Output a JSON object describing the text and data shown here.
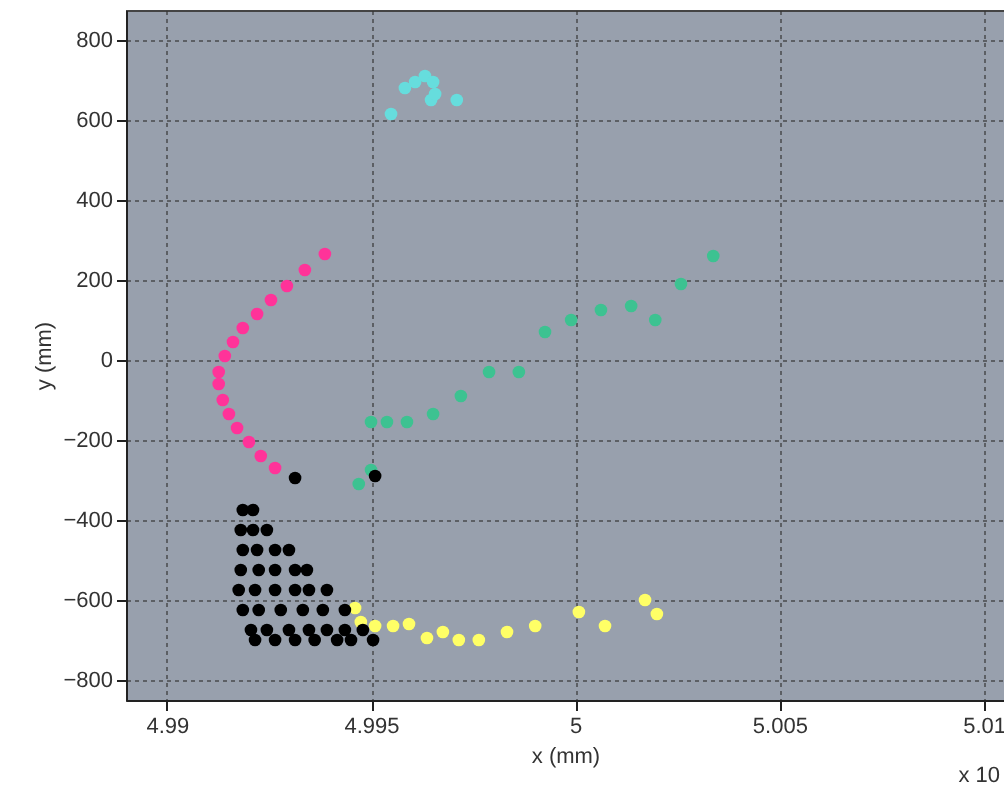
{
  "chart_data": {
    "type": "scatter",
    "xlabel": "x (mm)",
    "ylabel": "y (mm)",
    "annotations": [
      "x 10"
    ],
    "xlim": [
      4.989,
      5.0105
    ],
    "ylim": [
      -850,
      875
    ],
    "xticks": [
      4.99,
      4.995,
      5,
      5.005,
      5.01
    ],
    "yticks": [
      -800,
      -600,
      -400,
      -200,
      0,
      200,
      400,
      600,
      800
    ],
    "grid": true,
    "marker": "circle",
    "series": [
      {
        "color": "#ff3399",
        "x": [
          4.99387,
          4.99338,
          4.99294,
          4.99255,
          4.99221,
          4.99186,
          4.99162,
          4.99142,
          4.99127,
          4.99127,
          4.99137,
          4.99152,
          4.99172,
          4.99201,
          4.9923,
          4.99265
        ],
        "values": [
          265,
          225,
          185,
          150,
          115,
          80,
          45,
          10,
          -30,
          -60,
          -100,
          -135,
          -170,
          -205,
          -240,
          -270
        ]
      },
      {
        "color": "#3dc291",
        "x": [
          4.9947,
          4.995,
          4.995,
          4.99539,
          4.99588,
          4.99652,
          4.9972,
          4.99789,
          4.99862,
          4.99926,
          4.9999,
          5.00063,
          5.00137,
          5.00196,
          5.00259,
          5.00338
        ],
        "values": [
          -310,
          -275,
          -155,
          -155,
          -155,
          -135,
          -90,
          -30,
          -30,
          70,
          100,
          125,
          135,
          100,
          190,
          260
        ]
      },
      {
        "color": "#ffff66",
        "x": [
          4.99461,
          4.99475,
          4.9951,
          4.99554,
          4.99593,
          4.99637,
          4.99676,
          4.99715,
          4.99764,
          4.99833,
          4.99902,
          5.00009,
          5.00073,
          5.00171,
          5.002
        ],
        "values": [
          -620,
          -655,
          -665,
          -665,
          -660,
          -695,
          -680,
          -700,
          -700,
          -680,
          -665,
          -630,
          -665,
          -600,
          -635
        ]
      },
      {
        "color": "#66dddd",
        "x": [
          4.99549,
          4.99583,
          4.99608,
          4.99632,
          4.99647,
          4.99657,
          4.99652,
          4.9971
        ],
        "values": [
          615,
          680,
          695,
          710,
          650,
          665,
          695,
          650
        ]
      },
      {
        "color": "#000000",
        "x": [
          4.99314,
          4.9951,
          4.99186,
          4.99211,
          4.99181,
          4.99211,
          4.99245,
          4.99186,
          4.99221,
          4.99265,
          4.99299,
          4.99181,
          4.99225,
          4.99265,
          4.99314,
          4.99343,
          4.99176,
          4.99216,
          4.99265,
          4.99314,
          4.99348,
          4.99392,
          4.99186,
          4.99225,
          4.99279,
          4.99333,
          4.99382,
          4.99436,
          4.99206,
          4.99245,
          4.99299,
          4.99348,
          4.99392,
          4.99436,
          4.9948,
          4.99216,
          4.99265,
          4.99314,
          4.99362,
          4.99417,
          4.99451,
          4.99505
        ],
        "values": [
          -295,
          -290,
          -375,
          -375,
          -425,
          -425,
          -425,
          -475,
          -475,
          -475,
          -475,
          -525,
          -525,
          -525,
          -525,
          -525,
          -575,
          -575,
          -575,
          -575,
          -575,
          -575,
          -625,
          -625,
          -625,
          -625,
          -625,
          -625,
          -675,
          -675,
          -675,
          -675,
          -675,
          -675,
          -675,
          -700,
          -700,
          -700,
          -700,
          -700,
          -700,
          -700
        ]
      }
    ]
  }
}
